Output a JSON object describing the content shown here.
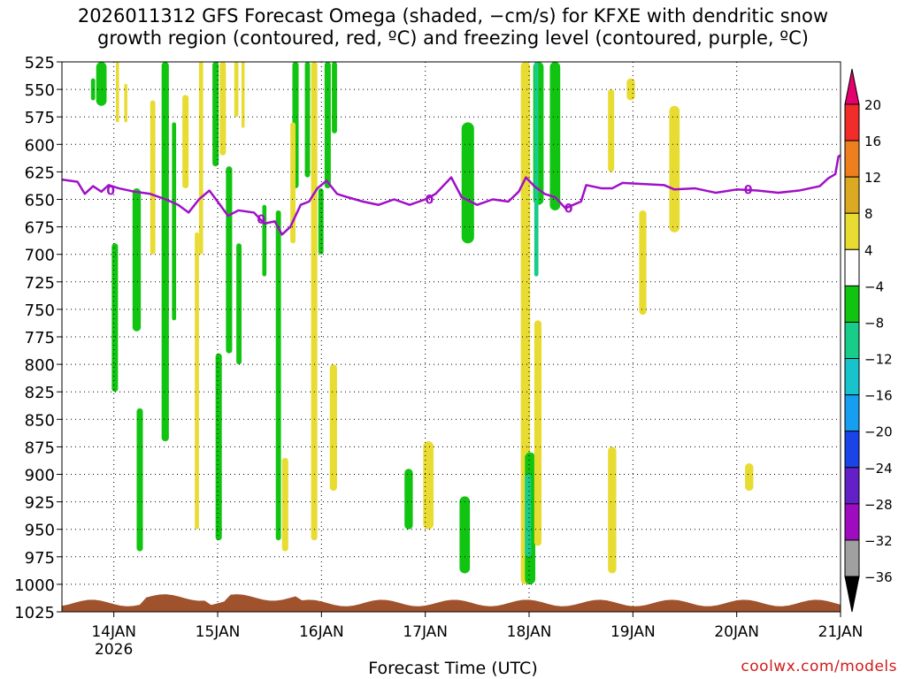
{
  "chart_data": {
    "type": "heatmap",
    "title_lines": [
      "2026011312 GFS Forecast Omega (shaded, −cm/s) for KFXE with dendritic snow",
      "growth region (contoured, red, ºC) and freezing level (contoured, purple, ºC)"
    ],
    "xlabel": "Forecast Time (UTC)",
    "x_ticks": [
      {
        "label": "14JAN",
        "sub": "2026",
        "day": 14
      },
      {
        "label": "15JAN",
        "sub": "",
        "day": 15
      },
      {
        "label": "16JAN",
        "sub": "",
        "day": 16
      },
      {
        "label": "17JAN",
        "sub": "",
        "day": 17
      },
      {
        "label": "18JAN",
        "sub": "",
        "day": 18
      },
      {
        "label": "19JAN",
        "sub": "",
        "day": 19
      },
      {
        "label": "20JAN",
        "sub": "",
        "day": 20
      },
      {
        "label": "21JAN",
        "sub": "",
        "day": 21
      }
    ],
    "xlim_days": [
      13.5,
      21.0
    ],
    "y_ticks": [
      525,
      550,
      575,
      600,
      625,
      650,
      675,
      700,
      725,
      750,
      775,
      800,
      825,
      850,
      875,
      900,
      925,
      950,
      975,
      1000,
      1025
    ],
    "ylim": [
      525,
      1025
    ],
    "colorbar": {
      "labels": [
        "20",
        "16",
        "12",
        "8",
        "4",
        "−4",
        "−8",
        "−12",
        "−16",
        "−20",
        "−24",
        "−28",
        "−32",
        "−36"
      ],
      "colors": [
        "#e4006e",
        "#f22b2b",
        "#ee7f1e",
        "#dcaa22",
        "#e8dc32",
        "#ffffff",
        "#12c412",
        "#18cc8a",
        "#18c4cc",
        "#169ff0",
        "#1b44e8",
        "#6420c8",
        "#9e0cc0",
        "#a0a0a0",
        "#000000"
      ]
    },
    "freezing_level": {
      "color": "#a010c8",
      "label": "0",
      "points": [
        [
          13.5,
          632
        ],
        [
          13.65,
          634
        ],
        [
          13.72,
          645
        ],
        [
          13.8,
          638
        ],
        [
          13.88,
          643
        ],
        [
          13.95,
          637
        ],
        [
          14.05,
          640
        ],
        [
          14.2,
          643
        ],
        [
          14.35,
          645
        ],
        [
          14.5,
          650
        ],
        [
          14.62,
          655
        ],
        [
          14.72,
          662
        ],
        [
          14.82,
          650
        ],
        [
          14.92,
          642
        ],
        [
          15.0,
          652
        ],
        [
          15.1,
          665
        ],
        [
          15.2,
          660
        ],
        [
          15.35,
          662
        ],
        [
          15.45,
          672
        ],
        [
          15.55,
          670
        ],
        [
          15.62,
          682
        ],
        [
          15.7,
          675
        ],
        [
          15.8,
          655
        ],
        [
          15.88,
          652
        ],
        [
          15.96,
          640
        ],
        [
          16.05,
          633
        ],
        [
          16.15,
          645
        ],
        [
          16.25,
          648
        ],
        [
          16.4,
          652
        ],
        [
          16.55,
          655
        ],
        [
          16.7,
          650
        ],
        [
          16.85,
          655
        ],
        [
          17.0,
          650
        ],
        [
          17.1,
          645
        ],
        [
          17.25,
          630
        ],
        [
          17.35,
          648
        ],
        [
          17.5,
          655
        ],
        [
          17.65,
          650
        ],
        [
          17.8,
          652
        ],
        [
          17.9,
          643
        ],
        [
          17.97,
          630
        ],
        [
          18.05,
          638
        ],
        [
          18.15,
          645
        ],
        [
          18.25,
          648
        ],
        [
          18.35,
          658
        ],
        [
          18.5,
          652
        ],
        [
          18.55,
          637
        ],
        [
          18.7,
          640
        ],
        [
          18.8,
          640
        ],
        [
          18.9,
          635
        ],
        [
          19.1,
          636
        ],
        [
          19.3,
          637
        ],
        [
          19.4,
          641
        ],
        [
          19.6,
          640
        ],
        [
          19.8,
          644
        ],
        [
          20.0,
          641
        ],
        [
          20.2,
          642
        ],
        [
          20.4,
          644
        ],
        [
          20.6,
          642
        ],
        [
          20.8,
          638
        ],
        [
          20.88,
          631
        ],
        [
          20.95,
          627
        ],
        [
          20.98,
          611
        ],
        [
          21.0,
          610
        ]
      ]
    },
    "shaded_regions": [
      {
        "x": 13.83,
        "w": 0.1,
        "y0": 525,
        "y1": 565,
        "v": -6
      },
      {
        "x": 13.78,
        "w": 0.04,
        "y0": 540,
        "y1": 560,
        "v": -6
      },
      {
        "x": 14.02,
        "w": 0.03,
        "y0": 525,
        "y1": 580,
        "v": 6
      },
      {
        "x": 14.1,
        "w": 0.03,
        "y0": 545,
        "y1": 580,
        "v": 6
      },
      {
        "x": 13.98,
        "w": 0.06,
        "y0": 690,
        "y1": 825,
        "v": -6
      },
      {
        "x": 14.18,
        "w": 0.08,
        "y0": 640,
        "y1": 770,
        "v": -6
      },
      {
        "x": 14.22,
        "w": 0.06,
        "y0": 840,
        "y1": 970,
        "v": -6
      },
      {
        "x": 14.35,
        "w": 0.05,
        "y0": 560,
        "y1": 700,
        "v": 6
      },
      {
        "x": 14.46,
        "w": 0.07,
        "y0": 525,
        "y1": 870,
        "v": -6
      },
      {
        "x": 14.56,
        "w": 0.04,
        "y0": 580,
        "y1": 760,
        "v": -6
      },
      {
        "x": 14.66,
        "w": 0.06,
        "y0": 555,
        "y1": 640,
        "v": 6
      },
      {
        "x": 14.82,
        "w": 0.04,
        "y0": 525,
        "y1": 700,
        "v": 6
      },
      {
        "x": 14.78,
        "w": 0.04,
        "y0": 680,
        "y1": 950,
        "v": 6
      },
      {
        "x": 14.95,
        "w": 0.06,
        "y0": 525,
        "y1": 620,
        "v": -6
      },
      {
        "x": 15.02,
        "w": 0.06,
        "y0": 525,
        "y1": 610,
        "v": 6
      },
      {
        "x": 14.98,
        "w": 0.06,
        "y0": 790,
        "y1": 960,
        "v": -6
      },
      {
        "x": 15.16,
        "w": 0.04,
        "y0": 525,
        "y1": 575,
        "v": 6
      },
      {
        "x": 15.08,
        "w": 0.06,
        "y0": 620,
        "y1": 790,
        "v": -6
      },
      {
        "x": 15.23,
        "w": 0.03,
        "y0": 525,
        "y1": 585,
        "v": 6
      },
      {
        "x": 15.18,
        "w": 0.05,
        "y0": 690,
        "y1": 800,
        "v": -6
      },
      {
        "x": 15.43,
        "w": 0.04,
        "y0": 655,
        "y1": 720,
        "v": -6
      },
      {
        "x": 15.56,
        "w": 0.05,
        "y0": 660,
        "y1": 960,
        "v": -6
      },
      {
        "x": 15.62,
        "w": 0.06,
        "y0": 885,
        "y1": 970,
        "v": 6
      },
      {
        "x": 15.72,
        "w": 0.06,
        "y0": 525,
        "y1": 640,
        "v": -6
      },
      {
        "x": 15.7,
        "w": 0.05,
        "y0": 580,
        "y1": 690,
        "v": 6
      },
      {
        "x": 15.84,
        "w": 0.05,
        "y0": 525,
        "y1": 630,
        "v": -6
      },
      {
        "x": 15.9,
        "w": 0.06,
        "y0": 525,
        "y1": 960,
        "v": 6
      },
      {
        "x": 16.03,
        "w": 0.06,
        "y0": 525,
        "y1": 640,
        "v": -6
      },
      {
        "x": 16.1,
        "w": 0.05,
        "y0": 525,
        "y1": 590,
        "v": -6
      },
      {
        "x": 15.97,
        "w": 0.05,
        "y0": 640,
        "y1": 700,
        "v": -6
      },
      {
        "x": 16.08,
        "w": 0.07,
        "y0": 800,
        "y1": 915,
        "v": 6
      },
      {
        "x": 16.8,
        "w": 0.08,
        "y0": 895,
        "y1": 950,
        "v": -6
      },
      {
        "x": 16.98,
        "w": 0.1,
        "y0": 870,
        "y1": 950,
        "v": 6
      },
      {
        "x": 17.35,
        "w": 0.12,
        "y0": 580,
        "y1": 690,
        "v": -6
      },
      {
        "x": 17.33,
        "w": 0.1,
        "y0": 920,
        "y1": 990,
        "v": -6
      },
      {
        "x": 17.92,
        "w": 0.09,
        "y0": 525,
        "y1": 1000,
        "v": 6
      },
      {
        "x": 18.04,
        "w": 0.1,
        "y0": 525,
        "y1": 655,
        "v": -6
      },
      {
        "x": 18.05,
        "w": 0.04,
        "y0": 525,
        "y1": 720,
        "v": -10
      },
      {
        "x": 18.2,
        "w": 0.1,
        "y0": 525,
        "y1": 660,
        "v": -6
      },
      {
        "x": 17.96,
        "w": 0.1,
        "y0": 880,
        "y1": 1000,
        "v": -6
      },
      {
        "x": 17.96,
        "w": 0.06,
        "y0": 900,
        "y1": 975,
        "v": -10
      },
      {
        "x": 18.05,
        "w": 0.07,
        "y0": 760,
        "y1": 965,
        "v": 6
      },
      {
        "x": 18.76,
        "w": 0.06,
        "y0": 550,
        "y1": 625,
        "v": 6
      },
      {
        "x": 18.94,
        "w": 0.08,
        "y0": 540,
        "y1": 560,
        "v": 6
      },
      {
        "x": 19.06,
        "w": 0.07,
        "y0": 660,
        "y1": 755,
        "v": 6
      },
      {
        "x": 19.35,
        "w": 0.1,
        "y0": 565,
        "y1": 680,
        "v": 6
      },
      {
        "x": 18.76,
        "w": 0.08,
        "y0": 875,
        "y1": 990,
        "v": 6
      },
      {
        "x": 20.08,
        "w": 0.08,
        "y0": 890,
        "y1": 915,
        "v": 6
      }
    ],
    "ground_color": "#a0522d"
  },
  "credit": "coolwx.com/models"
}
